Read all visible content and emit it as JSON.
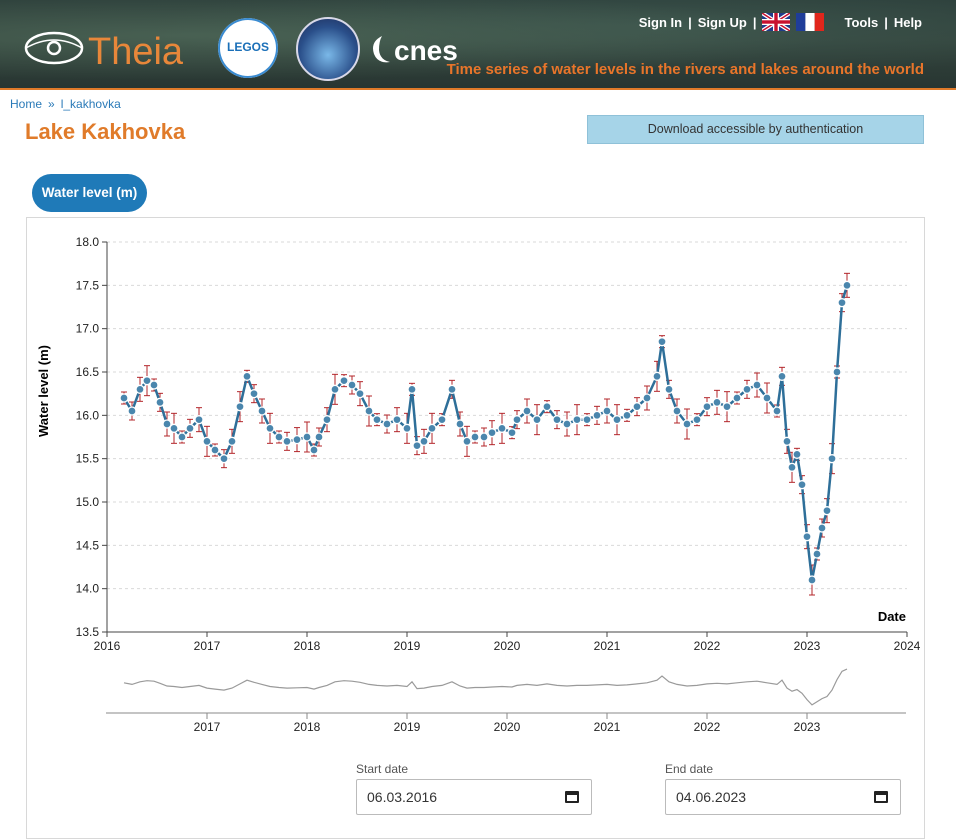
{
  "header": {
    "brand": "Theia",
    "legos_label": "LEGOS",
    "cnes_label": "cnes",
    "links": {
      "sign_in": "Sign In",
      "sign_up": "Sign Up",
      "tools": "Tools",
      "help": "Help"
    },
    "tagline": "Time series of water levels in the rivers and lakes around the world"
  },
  "breadcrumb": {
    "home": "Home",
    "separator": "»",
    "current": "l_kakhovka"
  },
  "page_title": "Lake Kakhovka",
  "download_button": "Download accessible by authentication",
  "tab": "Water level (m)",
  "colors": {
    "accent_orange": "#e07b2a",
    "point_fill": "#4a86ad",
    "line": "#2e6f99",
    "error_bar": "#b3262a",
    "tab_blue": "#1f7ab8",
    "download_bg": "#a6d4e8"
  },
  "chart_data": {
    "type": "line",
    "ylabel": "Water level (m)",
    "xlabel": "Date",
    "ylim": [
      13.5,
      18.0
    ],
    "xlim": [
      2016,
      2024
    ],
    "y_ticks": [
      "13.5",
      "14.0",
      "14.5",
      "15.0",
      "15.5",
      "16.0",
      "16.5",
      "17.0",
      "17.5",
      "18.0"
    ],
    "x_ticks": [
      "2016",
      "2017",
      "2018",
      "2019",
      "2020",
      "2021",
      "2022",
      "2023",
      "2024"
    ],
    "grid": true,
    "series": [
      {
        "x": [
          2016.17,
          2016.25,
          2016.33,
          2016.4,
          2016.47,
          2016.53,
          2016.6,
          2016.67,
          2016.75,
          2016.83,
          2016.92,
          2017.0,
          2017.08,
          2017.17,
          2017.25,
          2017.33,
          2017.4,
          2017.47,
          2017.55,
          2017.63,
          2017.72,
          2017.8,
          2017.9,
          2018.0,
          2018.07,
          2018.12,
          2018.2,
          2018.28,
          2018.37,
          2018.45,
          2018.53,
          2018.62,
          2018.7,
          2018.8,
          2018.9,
          2019.0,
          2019.05,
          2019.1,
          2019.17,
          2019.25,
          2019.35,
          2019.45,
          2019.53,
          2019.6,
          2019.68,
          2019.77,
          2019.85,
          2019.95,
          2020.05,
          2020.1,
          2020.2,
          2020.3,
          2020.4,
          2020.5,
          2020.6,
          2020.7,
          2020.8,
          2020.9,
          2021.0,
          2021.1,
          2021.2,
          2021.3,
          2021.4,
          2021.5,
          2021.55,
          2021.62,
          2021.7,
          2021.8,
          2021.9,
          2022.0,
          2022.1,
          2022.2,
          2022.3,
          2022.4,
          2022.5,
          2022.6,
          2022.7,
          2022.75,
          2022.8,
          2022.85,
          2022.9,
          2022.95,
          2023.0,
          2023.05,
          2023.1,
          2023.15,
          2023.2,
          2023.25,
          2023.3,
          2023.35,
          2023.4
        ],
        "y": [
          16.2,
          16.05,
          16.3,
          16.4,
          16.35,
          16.15,
          15.9,
          15.85,
          15.75,
          15.85,
          15.95,
          15.7,
          15.6,
          15.5,
          15.7,
          16.1,
          16.45,
          16.25,
          16.05,
          15.85,
          15.75,
          15.7,
          15.72,
          15.75,
          15.6,
          15.75,
          15.95,
          16.3,
          16.4,
          16.35,
          16.25,
          16.05,
          15.95,
          15.9,
          15.95,
          15.85,
          16.3,
          15.65,
          15.7,
          15.85,
          15.95,
          16.3,
          15.9,
          15.7,
          15.75,
          15.75,
          15.8,
          15.85,
          15.8,
          15.95,
          16.05,
          15.95,
          16.1,
          15.95,
          15.9,
          15.95,
          15.95,
          16.0,
          16.05,
          15.95,
          16.0,
          16.1,
          16.2,
          16.45,
          16.85,
          16.3,
          16.05,
          15.9,
          15.95,
          16.1,
          16.15,
          16.1,
          16.2,
          16.3,
          16.35,
          16.2,
          16.05,
          16.45,
          15.7,
          15.4,
          15.55,
          15.2,
          14.6,
          14.1,
          14.4,
          14.7,
          14.9,
          15.5,
          16.5,
          17.3,
          17.5
        ]
      }
    ],
    "navigator": {
      "x_ticks": [
        "2017",
        "2018",
        "2019",
        "2020",
        "2021",
        "2022",
        "2023"
      ]
    }
  },
  "date_range": {
    "start_label": "Start date",
    "start_value": "06.03.2016",
    "end_label": "End date",
    "end_value": "04.06.2023"
  }
}
